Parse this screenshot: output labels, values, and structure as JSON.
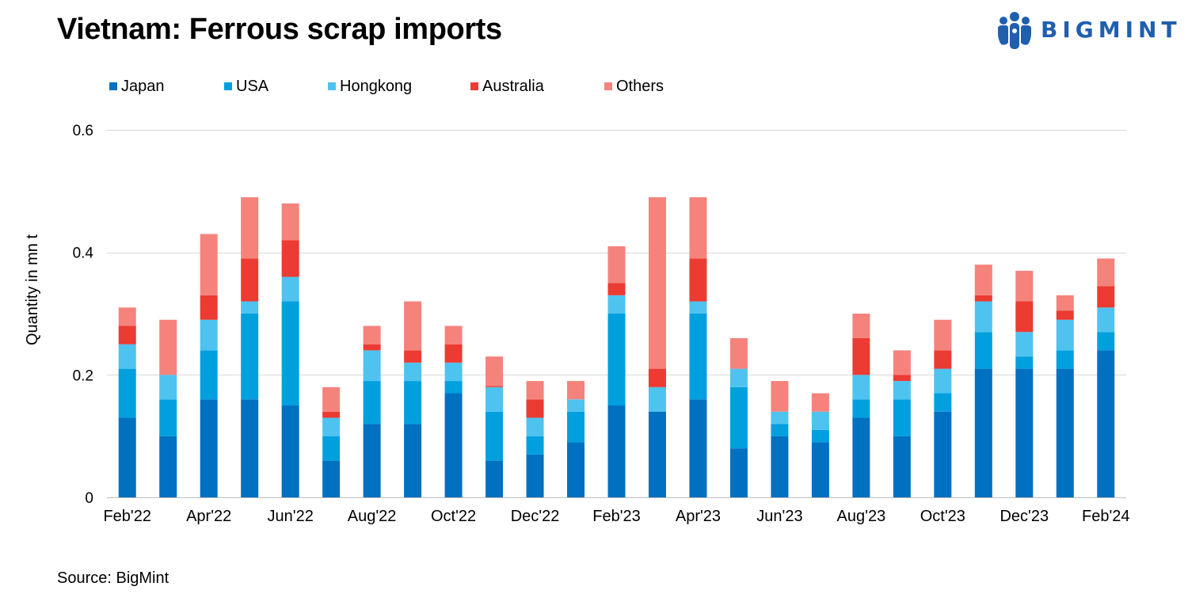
{
  "title": "Vietnam: Ferrous scrap imports",
  "logo": {
    "text": "BIGMINT",
    "icon": "bigmint-people-icon"
  },
  "source": "Source: BigMint",
  "colors": {
    "text": "#000000",
    "brand": "#1F5FAE",
    "grid": "#D9D9D9",
    "axis": "#BFBFBF"
  },
  "chart_data": {
    "type": "bar",
    "stacked": true,
    "title": "Vietnam: Ferrous scrap imports",
    "xlabel": "",
    "ylabel": "Quantity in mn t",
    "ylim": [
      0,
      0.6
    ],
    "yticks": [
      0,
      0.2,
      0.4,
      0.6
    ],
    "ytick_labels": [
      "0",
      "0.2",
      "0.4",
      "0.6"
    ],
    "grid": true,
    "legend_position": "top",
    "categories": [
      "Feb'22",
      "",
      "Apr'22",
      "",
      "Jun'22",
      "",
      "Aug'22",
      "",
      "Oct'22",
      "",
      "Dec'22",
      "",
      "Feb'23",
      "",
      "Apr'23",
      "",
      "Jun'23",
      "",
      "Aug'23",
      "",
      "Oct'23",
      "",
      "Dec'23",
      "",
      "Feb'24"
    ],
    "series": [
      {
        "name": "Japan",
        "color": "#0070C0",
        "values": [
          0.13,
          0.1,
          0.16,
          0.16,
          0.15,
          0.06,
          0.12,
          0.12,
          0.17,
          0.06,
          0.07,
          0.09,
          0.15,
          0.14,
          0.16,
          0.08,
          0.1,
          0.09,
          0.13,
          0.1,
          0.14,
          0.21,
          0.21,
          0.21,
          0.24
        ]
      },
      {
        "name": "USA",
        "color": "#00A0DF",
        "values": [
          0.08,
          0.06,
          0.08,
          0.14,
          0.17,
          0.04,
          0.07,
          0.07,
          0.02,
          0.08,
          0.03,
          0.05,
          0.15,
          0,
          0.14,
          0.1,
          0.02,
          0.02,
          0.03,
          0.06,
          0.03,
          0.06,
          0.02,
          0.03,
          0.03
        ]
      },
      {
        "name": "Hongkong",
        "color": "#4FC3EF",
        "values": [
          0.04,
          0.04,
          0.05,
          0.02,
          0.04,
          0.03,
          0.05,
          0.03,
          0.03,
          0.04,
          0.03,
          0.02,
          0.03,
          0.04,
          0.02,
          0.03,
          0.02,
          0.03,
          0.04,
          0.03,
          0.04,
          0.05,
          0.04,
          0.05,
          0.04
        ]
      },
      {
        "name": "Australia",
        "color": "#EB3B32",
        "values": [
          0.03,
          0,
          0.04,
          0.07,
          0.06,
          0.01,
          0.01,
          0.02,
          0.03,
          0.002,
          0.03,
          0,
          0.02,
          0.03,
          0.07,
          0,
          0,
          0,
          0.06,
          0.01,
          0.03,
          0.01,
          0.05,
          0.015,
          0.035
        ]
      },
      {
        "name": "Others",
        "color": "#F5837C",
        "values": [
          0.03,
          0.09,
          0.1,
          0.1,
          0.06,
          0.04,
          0.03,
          0.08,
          0.03,
          0.048,
          0.03,
          0.03,
          0.06,
          0.28,
          0.1,
          0.05,
          0.05,
          0.03,
          0.04,
          0.04,
          0.05,
          0.05,
          0.05,
          0.025,
          0.045
        ]
      }
    ]
  }
}
